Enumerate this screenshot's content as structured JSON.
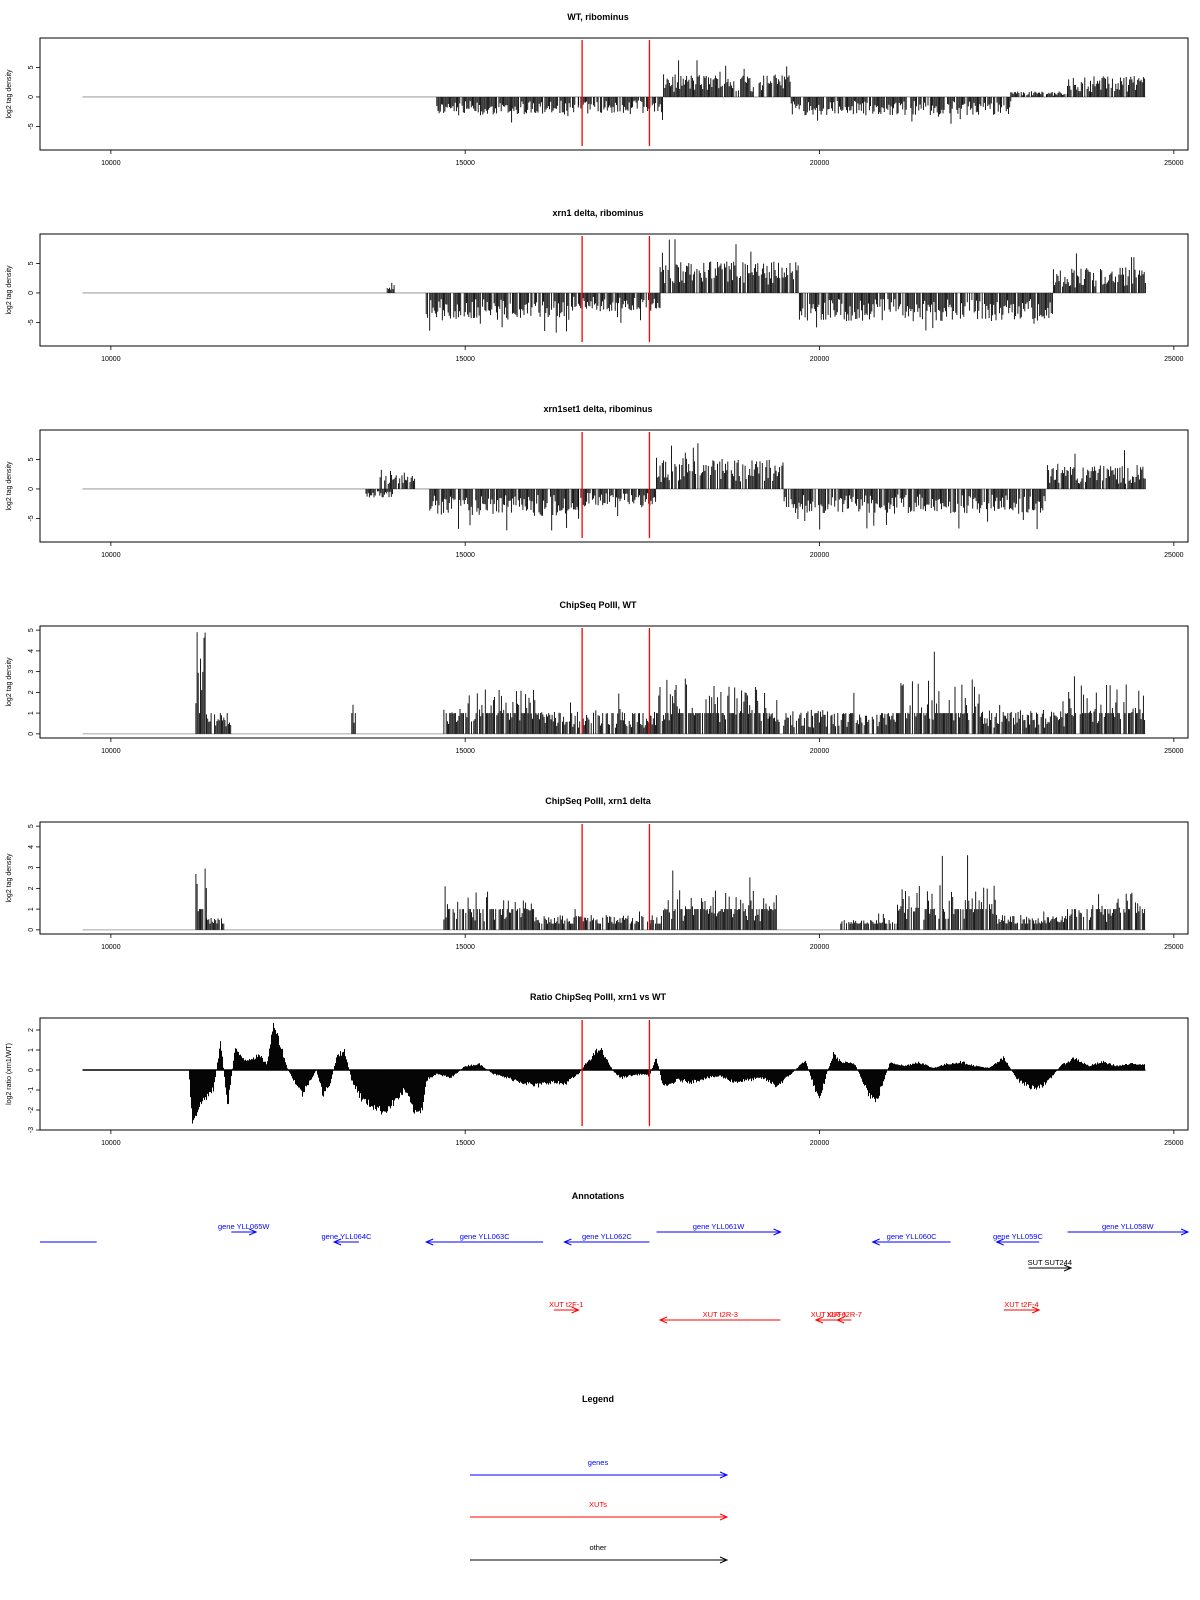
{
  "chart_data": [
    {
      "type": "bar",
      "title": "WT, ribominus",
      "xlabel": "",
      "ylabel": "log2 tag density",
      "xlim": [
        9000,
        25200
      ],
      "ylim": [
        -9,
        10
      ],
      "x_ticks": [
        10000,
        15000,
        20000,
        25000
      ],
      "y_ticks": [
        -5,
        0,
        5
      ],
      "grid": false,
      "legend": "none",
      "markers_x": [
        16650,
        17600
      ],
      "marker_color": "#ff0000",
      "bar_color": "#000000",
      "baseline_start": 9600,
      "segments": [
        {
          "start": 14600,
          "end": 16600,
          "amp": -2.5
        },
        {
          "start": 16600,
          "end": 17800,
          "amp": -2.3
        },
        {
          "start": 17800,
          "end": 19600,
          "amp": 3.2
        },
        {
          "start": 19600,
          "end": 22700,
          "amp": -2.6
        },
        {
          "start": 22700,
          "end": 23500,
          "amp": 0.8
        },
        {
          "start": 23500,
          "end": 24600,
          "amp": 3.0
        }
      ]
    },
    {
      "type": "bar",
      "title": "xrn1 delta, ribominus",
      "xlabel": "",
      "ylabel": "log2 tag density",
      "xlim": [
        9000,
        25200
      ],
      "ylim": [
        -9,
        10
      ],
      "x_ticks": [
        10000,
        15000,
        20000,
        25000
      ],
      "y_ticks": [
        -5,
        0,
        5
      ],
      "grid": false,
      "legend": "none",
      "markers_x": [
        16650,
        17600
      ],
      "marker_color": "#ff0000",
      "bar_color": "#000000",
      "baseline_start": 9600,
      "segments": [
        {
          "start": 13900,
          "end": 14000,
          "amp": 2.0
        },
        {
          "start": 14450,
          "end": 16500,
          "amp": -3.8
        },
        {
          "start": 16500,
          "end": 17750,
          "amp": -2.6
        },
        {
          "start": 17750,
          "end": 19700,
          "amp": 4.5
        },
        {
          "start": 19700,
          "end": 23300,
          "amp": -4.0
        },
        {
          "start": 23300,
          "end": 24600,
          "amp": 3.6
        }
      ]
    },
    {
      "type": "bar",
      "title": "xrn1set1 delta, ribominus",
      "xlabel": "",
      "ylabel": "log2 tag density",
      "xlim": [
        9000,
        25200
      ],
      "ylim": [
        -9,
        10
      ],
      "x_ticks": [
        10000,
        15000,
        20000,
        25000
      ],
      "y_ticks": [
        -5,
        0,
        5
      ],
      "grid": false,
      "legend": "none",
      "markers_x": [
        16650,
        17600
      ],
      "marker_color": "#ff0000",
      "bar_color": "#000000",
      "baseline_start": 9600,
      "segments": [
        {
          "start": 13600,
          "end": 14000,
          "amp": -1.2
        },
        {
          "start": 13800,
          "end": 14300,
          "amp": 2.0
        },
        {
          "start": 14500,
          "end": 16600,
          "amp": -3.8
        },
        {
          "start": 16600,
          "end": 17700,
          "amp": -2.6
        },
        {
          "start": 17700,
          "end": 19500,
          "amp": 4.4
        },
        {
          "start": 19500,
          "end": 23200,
          "amp": -3.5
        },
        {
          "start": 23200,
          "end": 24600,
          "amp": 3.4
        }
      ]
    },
    {
      "type": "bar",
      "title": "ChipSeq PolII, WT",
      "xlabel": "",
      "ylabel": "log2 tag density",
      "xlim": [
        9000,
        25200
      ],
      "ylim": [
        -0.2,
        5.2
      ],
      "x_ticks": [
        10000,
        15000,
        20000,
        25000
      ],
      "y_ticks": [
        0,
        1,
        2,
        3,
        4,
        5
      ],
      "grid": false,
      "legend": "none",
      "markers_x": [
        16650,
        17600
      ],
      "marker_color": "#ff0000",
      "bar_color": "#000000",
      "baseline_start": 9600,
      "segments": [
        {
          "start": 11200,
          "end": 11350,
          "amp": 4.5
        },
        {
          "start": 11350,
          "end": 11700,
          "amp": 1.0
        },
        {
          "start": 13400,
          "end": 13450,
          "amp": 1.6
        },
        {
          "start": 14700,
          "end": 16000,
          "amp": 1.8
        },
        {
          "start": 16000,
          "end": 17700,
          "amp": 1.0
        },
        {
          "start": 17700,
          "end": 19300,
          "amp": 2.0
        },
        {
          "start": 19300,
          "end": 21100,
          "amp": 1.0
        },
        {
          "start": 21100,
          "end": 22300,
          "amp": 2.2
        },
        {
          "start": 22300,
          "end": 23500,
          "amp": 1.0
        },
        {
          "start": 23500,
          "end": 24600,
          "amp": 2.0
        }
      ]
    },
    {
      "type": "bar",
      "title": "ChipSeq PolII, xrn1 delta",
      "xlabel": "",
      "ylabel": "log2 tag density",
      "xlim": [
        9000,
        25200
      ],
      "ylim": [
        -0.2,
        5.2
      ],
      "x_ticks": [
        10000,
        15000,
        20000,
        25000
      ],
      "y_ticks": [
        0,
        1,
        2,
        3,
        4,
        5
      ],
      "grid": false,
      "legend": "none",
      "markers_x": [
        16650,
        17600
      ],
      "marker_color": "#ff0000",
      "bar_color": "#000000",
      "baseline_start": 9600,
      "segments": [
        {
          "start": 11200,
          "end": 11350,
          "amp": 2.6
        },
        {
          "start": 11350,
          "end": 11600,
          "amp": 0.5
        },
        {
          "start": 14700,
          "end": 16000,
          "amp": 1.6
        },
        {
          "start": 16000,
          "end": 17800,
          "amp": 0.6
        },
        {
          "start": 17800,
          "end": 19400,
          "amp": 1.6
        },
        {
          "start": 20300,
          "end": 21100,
          "amp": 0.4
        },
        {
          "start": 21100,
          "end": 22500,
          "amp": 1.8
        },
        {
          "start": 22500,
          "end": 23500,
          "amp": 0.6
        },
        {
          "start": 23500,
          "end": 24600,
          "amp": 1.5
        }
      ]
    },
    {
      "type": "area",
      "title": "Ratio ChipSeq PolII, xrn1 vs WT",
      "xlabel": "",
      "ylabel": "log2 ratio (xrn1/WT)",
      "xlim": [
        9000,
        25200
      ],
      "ylim": [
        -3,
        2.6
      ],
      "x_ticks": [
        10000,
        15000,
        20000,
        25000
      ],
      "y_ticks": [
        -3,
        -2,
        -1,
        0,
        1,
        2
      ],
      "grid": false,
      "legend": "none",
      "markers_x": [
        16650,
        17600
      ],
      "marker_color": "#ff0000",
      "bar_color": "#000000",
      "baseline_start": 9600,
      "x": [
        9600,
        11100,
        11150,
        11200,
        11300,
        11450,
        11550,
        11650,
        11750,
        11900,
        12000,
        12100,
        12200,
        12250,
        12300,
        12500,
        12700,
        12900,
        13000,
        13100,
        13200,
        13300,
        13400,
        13550,
        13700,
        13850,
        14000,
        14150,
        14300,
        14400,
        14450,
        14600,
        14800,
        15000,
        15200,
        15400,
        15600,
        15800,
        16000,
        16200,
        16400,
        16600,
        16700,
        16900,
        17000,
        17100,
        17200,
        17300,
        17500,
        17600,
        17700,
        17800,
        18000,
        18200,
        18400,
        18600,
        18800,
        19000,
        19200,
        19400,
        19600,
        19800,
        20000,
        20100,
        20200,
        20300,
        20500,
        20700,
        20800,
        20900,
        21000,
        21200,
        21400,
        21600,
        21800,
        22000,
        22200,
        22400,
        22600,
        22800,
        23000,
        23200,
        23400,
        23600,
        23800,
        24000,
        24200,
        24400,
        24600
      ],
      "y": [
        0,
        0,
        -2.6,
        -2.2,
        -1.5,
        -1.0,
        1.4,
        -1.8,
        1.0,
        0.5,
        0.6,
        0.7,
        0.3,
        1.2,
        2.4,
        0,
        -1.2,
        0,
        -1.3,
        -0.6,
        0.8,
        0.9,
        -0.5,
        -1.5,
        -1.8,
        -2.1,
        -1.6,
        -1.0,
        -2.2,
        -1.9,
        -0.5,
        -0.2,
        -0.4,
        0.2,
        0.3,
        -0.2,
        -0.4,
        -0.6,
        -0.8,
        -0.6,
        -0.7,
        -0.2,
        0.3,
        1.1,
        0.5,
        -0.1,
        -0.4,
        -0.3,
        -0.2,
        -0.3,
        0.6,
        -0.9,
        -0.5,
        -0.6,
        -0.4,
        -0.3,
        -0.6,
        -0.5,
        -0.4,
        -0.8,
        -0.2,
        0.5,
        -1.6,
        -0.2,
        0.8,
        0.4,
        0.3,
        -1.2,
        -1.6,
        -0.6,
        0.4,
        0.2,
        0.4,
        0.1,
        0.3,
        0.4,
        0.2,
        0.1,
        0.6,
        -0.5,
        -0.9,
        -0.7,
        0.2,
        0.6,
        0.2,
        0.4,
        0.2,
        0.3,
        0.3
      ]
    }
  ],
  "annotations": {
    "title": "Annotations",
    "genes_color": "#0000ff",
    "xuts_color": "#ff0000",
    "other_color": "#000000",
    "features": [
      {
        "label": "",
        "start": 9000,
        "end": 9800,
        "dir": "none",
        "color": "#0000ff",
        "row": "genes",
        "lvl": 1
      },
      {
        "label": "gene YLL065W",
        "start": 11700,
        "end": 12050,
        "dir": "+",
        "color": "#0000ff",
        "row": "genes",
        "lvl": 0
      },
      {
        "label": "gene YLL064C",
        "start": 13150,
        "end": 13500,
        "dir": "-",
        "color": "#0000ff",
        "row": "genes",
        "lvl": 1
      },
      {
        "label": "gene YLL063C",
        "start": 14450,
        "end": 16100,
        "dir": "-",
        "color": "#0000ff",
        "row": "genes",
        "lvl": 1
      },
      {
        "label": "gene YLL062C",
        "start": 16400,
        "end": 17600,
        "dir": "-",
        "color": "#0000ff",
        "row": "genes",
        "lvl": 1
      },
      {
        "label": "gene YLL061W",
        "start": 17700,
        "end": 19450,
        "dir": "+",
        "color": "#0000ff",
        "row": "genes",
        "lvl": 0
      },
      {
        "label": "gene YLL060C",
        "start": 20750,
        "end": 21850,
        "dir": "-",
        "color": "#0000ff",
        "row": "genes",
        "lvl": 1
      },
      {
        "label": "gene YLL059C",
        "start": 22500,
        "end": 23100,
        "dir": "-",
        "color": "#0000ff",
        "row": "genes",
        "lvl": 1
      },
      {
        "label": "gene YLL058W",
        "start": 23500,
        "end": 25200,
        "dir": "+",
        "color": "#0000ff",
        "row": "genes",
        "lvl": 0
      },
      {
        "label": "SUT SUT244",
        "start": 22950,
        "end": 23550,
        "dir": "+",
        "color": "#000000",
        "row": "other",
        "lvl": 2
      },
      {
        "label": "XUT t2F-1",
        "start": 16250,
        "end": 16600,
        "dir": "+",
        "color": "#ff0000",
        "row": "xuts",
        "lvl": 3
      },
      {
        "label": "XUT t2R-3",
        "start": 17750,
        "end": 19450,
        "dir": "-",
        "color": "#ff0000",
        "row": "xuts",
        "lvl": 4
      },
      {
        "label": "XUT t2R-6",
        "start": 19950,
        "end": 20300,
        "dir": "-",
        "color": "#ff0000",
        "row": "xuts",
        "lvl": 4
      },
      {
        "label": "XUT t2R-7",
        "start": 20250,
        "end": 20450,
        "dir": "-",
        "color": "#ff0000",
        "row": "xuts",
        "lvl": 4
      },
      {
        "label": "XUT t2F-4",
        "start": 22600,
        "end": 23100,
        "dir": "+",
        "color": "#ff0000",
        "row": "xuts",
        "lvl": 3
      }
    ]
  },
  "legend": {
    "title": "Legend",
    "items": [
      {
        "label": "genes",
        "color": "#0000ff"
      },
      {
        "label": "XUTs",
        "color": "#ff0000"
      },
      {
        "label": "other",
        "color": "#000000"
      }
    ]
  }
}
